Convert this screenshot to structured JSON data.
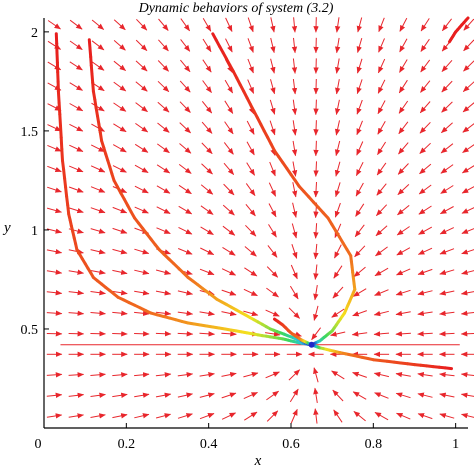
{
  "chart_data": {
    "type": "line",
    "title": "Dynamic behaviors of system (3.2)",
    "xlabel": "x",
    "ylabel": "y",
    "xlim": [
      0,
      1.03
    ],
    "ylim": [
      0,
      2.07
    ],
    "x_ticks": [
      "0",
      "0.2",
      "0.4",
      "0.6",
      "0.8",
      "1"
    ],
    "y_ticks": [
      "0.5",
      "1",
      "1.5",
      "2"
    ],
    "grid": false,
    "legend": "none",
    "colors": {
      "field_arrow": "#e8262c",
      "trajectory_start": "#e81e1e",
      "trajectory_mid": "#f5e61e",
      "trajectory_cross": "#3cd85a",
      "trajectory_end": "#1e28c8"
    },
    "equilibrium": {
      "x": 0.65,
      "y": 0.42
    },
    "direction_field": "arrow field converging to the equilibrium",
    "series": [
      {
        "points": [
          [
            0.03,
            1.99
          ],
          [
            0.035,
            1.7
          ],
          [
            0.045,
            1.35
          ],
          [
            0.06,
            1.08
          ],
          [
            0.08,
            0.9
          ],
          [
            0.12,
            0.76
          ],
          [
            0.18,
            0.66
          ],
          [
            0.26,
            0.58
          ],
          [
            0.35,
            0.53
          ],
          [
            0.44,
            0.5
          ],
          [
            0.52,
            0.47
          ],
          [
            0.58,
            0.45
          ],
          [
            0.62,
            0.43
          ],
          [
            0.65,
            0.42
          ]
        ]
      },
      {
        "points": [
          [
            0.11,
            1.96
          ],
          [
            0.12,
            1.7
          ],
          [
            0.14,
            1.45
          ],
          [
            0.17,
            1.25
          ],
          [
            0.22,
            1.06
          ],
          [
            0.28,
            0.9
          ],
          [
            0.35,
            0.76
          ],
          [
            0.42,
            0.65
          ],
          [
            0.49,
            0.57
          ],
          [
            0.55,
            0.5
          ],
          [
            0.6,
            0.46
          ],
          [
            0.65,
            0.42
          ]
        ]
      },
      {
        "points": [
          [
            0.41,
            1.99
          ],
          [
            0.46,
            1.8
          ],
          [
            0.51,
            1.6
          ],
          [
            0.56,
            1.4
          ],
          [
            0.62,
            1.22
          ],
          [
            0.69,
            1.06
          ],
          [
            0.745,
            0.87
          ],
          [
            0.755,
            0.7
          ],
          [
            0.73,
            0.58
          ],
          [
            0.7,
            0.49
          ],
          [
            0.67,
            0.44
          ],
          [
            0.65,
            0.42
          ]
        ]
      },
      {
        "points": [
          [
            0.56,
            0.55
          ],
          [
            0.58,
            0.52
          ],
          [
            0.6,
            0.48
          ],
          [
            0.625,
            0.445
          ],
          [
            0.64,
            0.43
          ],
          [
            0.65,
            0.42
          ]
        ]
      },
      {
        "points": [
          [
            0.99,
            0.3
          ],
          [
            0.9,
            0.32
          ],
          [
            0.8,
            0.345
          ],
          [
            0.72,
            0.38
          ],
          [
            0.67,
            0.405
          ],
          [
            0.65,
            0.42
          ]
        ]
      },
      {
        "points": [
          [
            1.03,
            2.07
          ],
          [
            1.0,
            2.0
          ],
          [
            0.985,
            1.95
          ]
        ]
      }
    ]
  }
}
